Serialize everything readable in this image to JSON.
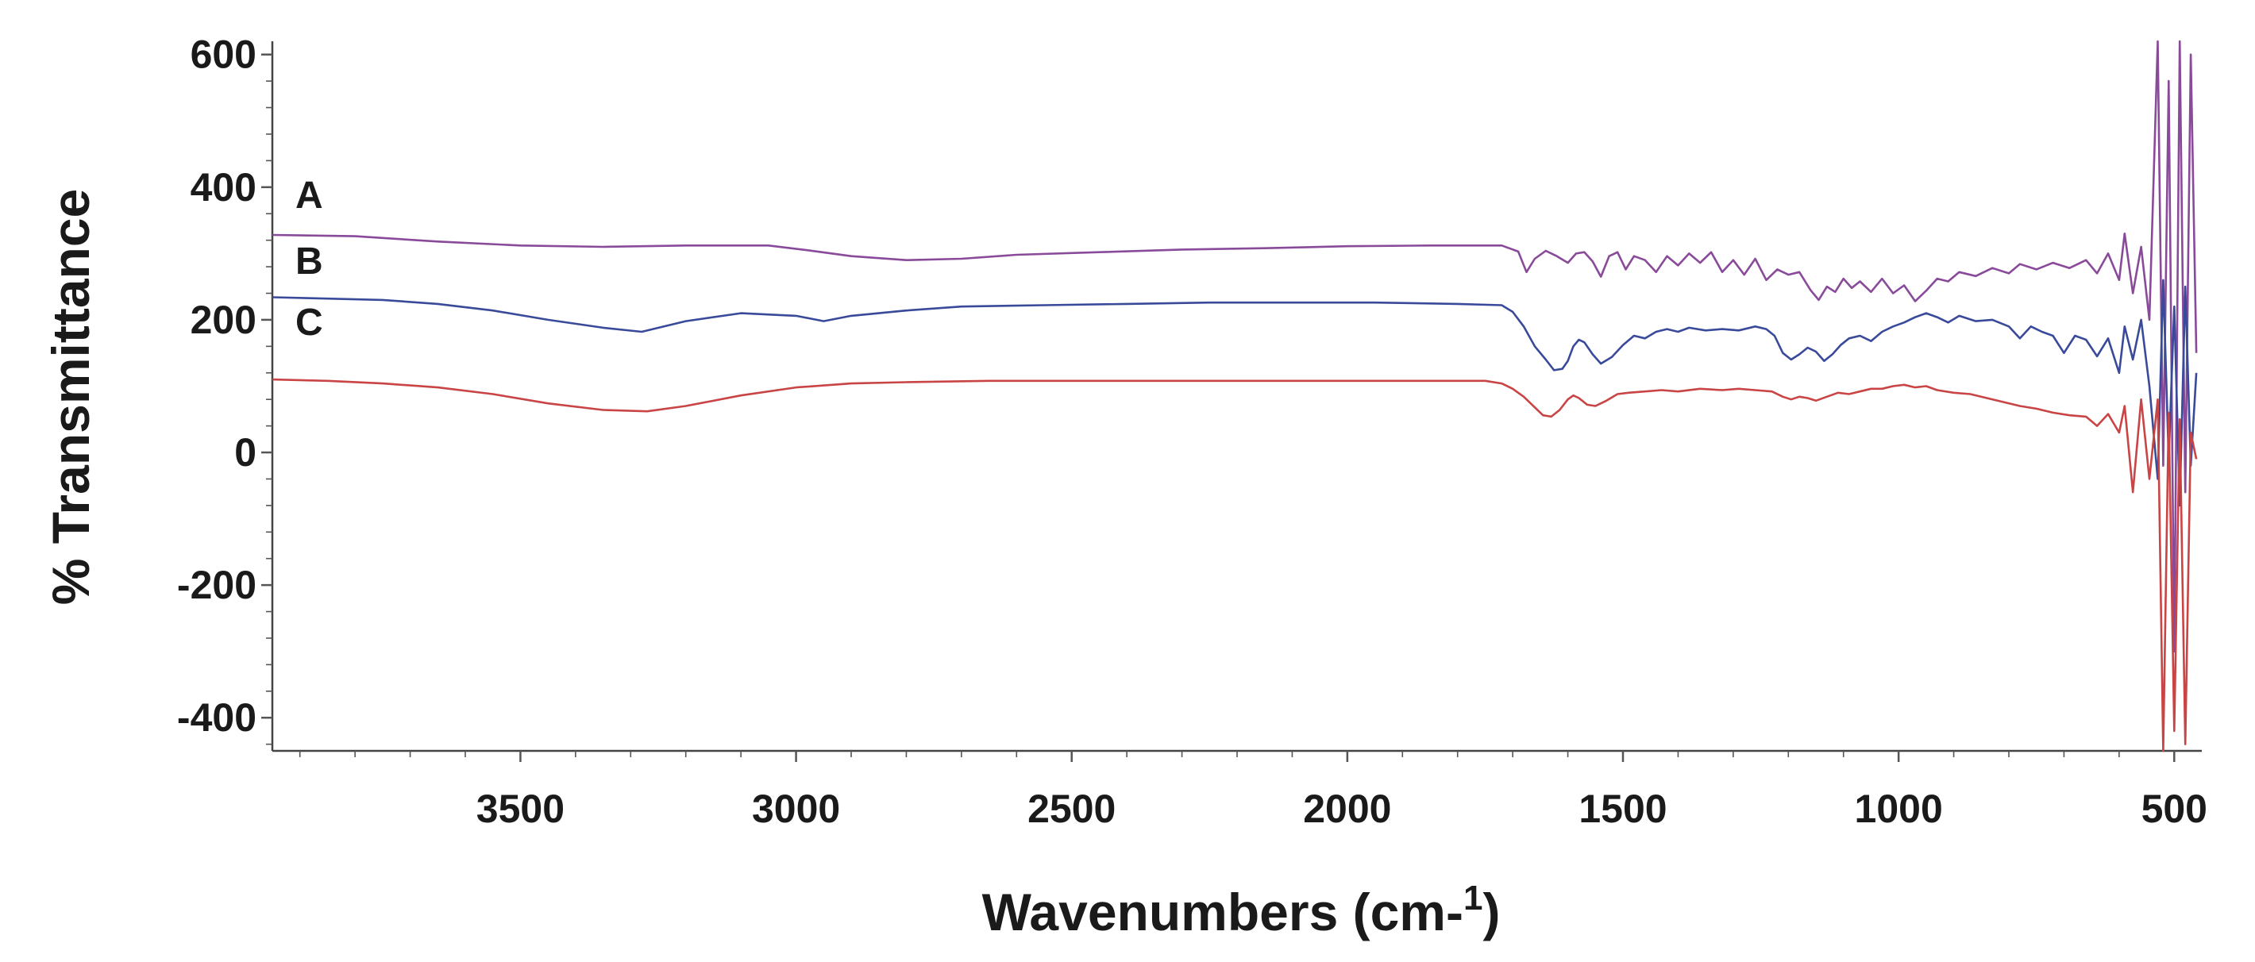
{
  "chart_data": {
    "type": "line",
    "title": "",
    "xlabel": "Wavenumbers (cm-",
    "xlabel_sup": "1",
    "xlabel_close": ")",
    "ylabel": "% Transmittance",
    "xlim": [
      3950,
      450
    ],
    "x_reversed": true,
    "ylim": [
      -450,
      620
    ],
    "xticks": [
      3500,
      3000,
      2500,
      2000,
      1500,
      1000,
      500
    ],
    "yticks": [
      600,
      400,
      200,
      0,
      -200,
      -400
    ],
    "grid": false,
    "legend": "inline labels",
    "series": [
      {
        "name": "A",
        "color": "#8a4a9a",
        "points": [
          [
            3950,
            328
          ],
          [
            3800,
            326
          ],
          [
            3650,
            318
          ],
          [
            3500,
            312
          ],
          [
            3350,
            310
          ],
          [
            3200,
            312
          ],
          [
            3050,
            312
          ],
          [
            2980,
            305
          ],
          [
            2900,
            296
          ],
          [
            2800,
            290
          ],
          [
            2700,
            292
          ],
          [
            2600,
            298
          ],
          [
            2450,
            302
          ],
          [
            2300,
            306
          ],
          [
            2150,
            308
          ],
          [
            2000,
            311
          ],
          [
            1850,
            312
          ],
          [
            1720,
            312
          ],
          [
            1690,
            303
          ],
          [
            1675,
            272
          ],
          [
            1660,
            292
          ],
          [
            1640,
            304
          ],
          [
            1620,
            296
          ],
          [
            1600,
            286
          ],
          [
            1585,
            300
          ],
          [
            1570,
            302
          ],
          [
            1555,
            288
          ],
          [
            1540,
            265
          ],
          [
            1525,
            296
          ],
          [
            1510,
            302
          ],
          [
            1495,
            276
          ],
          [
            1480,
            296
          ],
          [
            1460,
            290
          ],
          [
            1440,
            272
          ],
          [
            1420,
            296
          ],
          [
            1400,
            282
          ],
          [
            1380,
            300
          ],
          [
            1360,
            286
          ],
          [
            1340,
            302
          ],
          [
            1320,
            272
          ],
          [
            1300,
            290
          ],
          [
            1280,
            268
          ],
          [
            1260,
            292
          ],
          [
            1240,
            260
          ],
          [
            1220,
            276
          ],
          [
            1200,
            268
          ],
          [
            1180,
            272
          ],
          [
            1160,
            245
          ],
          [
            1145,
            230
          ],
          [
            1130,
            250
          ],
          [
            1115,
            242
          ],
          [
            1100,
            262
          ],
          [
            1085,
            248
          ],
          [
            1070,
            258
          ],
          [
            1050,
            242
          ],
          [
            1030,
            262
          ],
          [
            1010,
            240
          ],
          [
            990,
            252
          ],
          [
            970,
            228
          ],
          [
            950,
            244
          ],
          [
            930,
            262
          ],
          [
            910,
            258
          ],
          [
            890,
            272
          ],
          [
            860,
            266
          ],
          [
            830,
            278
          ],
          [
            800,
            270
          ],
          [
            780,
            284
          ],
          [
            750,
            276
          ],
          [
            720,
            286
          ],
          [
            690,
            278
          ],
          [
            660,
            290
          ],
          [
            640,
            270
          ],
          [
            620,
            300
          ],
          [
            600,
            260
          ],
          [
            590,
            330
          ],
          [
            575,
            240
          ],
          [
            560,
            310
          ],
          [
            545,
            200
          ],
          [
            530,
            620
          ],
          [
            520,
            -20
          ],
          [
            510,
            560
          ],
          [
            500,
            -300
          ],
          [
            490,
            620
          ],
          [
            480,
            -60
          ],
          [
            470,
            600
          ],
          [
            460,
            150
          ]
        ]
      },
      {
        "name": "B",
        "color": "#3a4a9a",
        "points": [
          [
            3950,
            234
          ],
          [
            3850,
            232
          ],
          [
            3750,
            230
          ],
          [
            3650,
            224
          ],
          [
            3550,
            214
          ],
          [
            3450,
            200
          ],
          [
            3350,
            188
          ],
          [
            3280,
            182
          ],
          [
            3200,
            198
          ],
          [
            3100,
            210
          ],
          [
            3000,
            206
          ],
          [
            2950,
            198
          ],
          [
            2900,
            206
          ],
          [
            2800,
            214
          ],
          [
            2700,
            220
          ],
          [
            2550,
            222
          ],
          [
            2400,
            224
          ],
          [
            2250,
            226
          ],
          [
            2100,
            226
          ],
          [
            1950,
            226
          ],
          [
            1800,
            224
          ],
          [
            1720,
            222
          ],
          [
            1700,
            212
          ],
          [
            1680,
            190
          ],
          [
            1660,
            160
          ],
          [
            1640,
            140
          ],
          [
            1625,
            124
          ],
          [
            1610,
            126
          ],
          [
            1600,
            138
          ],
          [
            1590,
            160
          ],
          [
            1580,
            170
          ],
          [
            1570,
            166
          ],
          [
            1555,
            148
          ],
          [
            1540,
            134
          ],
          [
            1520,
            144
          ],
          [
            1500,
            162
          ],
          [
            1480,
            176
          ],
          [
            1460,
            172
          ],
          [
            1440,
            182
          ],
          [
            1420,
            186
          ],
          [
            1400,
            182
          ],
          [
            1380,
            188
          ],
          [
            1350,
            184
          ],
          [
            1320,
            186
          ],
          [
            1290,
            184
          ],
          [
            1260,
            190
          ],
          [
            1240,
            186
          ],
          [
            1225,
            176
          ],
          [
            1210,
            150
          ],
          [
            1195,
            140
          ],
          [
            1180,
            148
          ],
          [
            1165,
            158
          ],
          [
            1150,
            152
          ],
          [
            1135,
            138
          ],
          [
            1120,
            148
          ],
          [
            1105,
            162
          ],
          [
            1090,
            172
          ],
          [
            1070,
            176
          ],
          [
            1050,
            168
          ],
          [
            1030,
            182
          ],
          [
            1010,
            190
          ],
          [
            990,
            196
          ],
          [
            970,
            204
          ],
          [
            950,
            210
          ],
          [
            930,
            204
          ],
          [
            910,
            196
          ],
          [
            890,
            206
          ],
          [
            860,
            198
          ],
          [
            830,
            200
          ],
          [
            800,
            190
          ],
          [
            780,
            172
          ],
          [
            760,
            190
          ],
          [
            740,
            182
          ],
          [
            720,
            176
          ],
          [
            700,
            150
          ],
          [
            680,
            176
          ],
          [
            660,
            170
          ],
          [
            640,
            145
          ],
          [
            620,
            172
          ],
          [
            600,
            120
          ],
          [
            590,
            190
          ],
          [
            575,
            140
          ],
          [
            560,
            200
          ],
          [
            545,
            100
          ],
          [
            530,
            -40
          ],
          [
            520,
            260
          ],
          [
            510,
            -10
          ],
          [
            500,
            220
          ],
          [
            490,
            -80
          ],
          [
            480,
            250
          ],
          [
            470,
            -20
          ],
          [
            460,
            120
          ]
        ]
      },
      {
        "name": "C",
        "color": "#c94444",
        "points": [
          [
            3950,
            110
          ],
          [
            3850,
            108
          ],
          [
            3750,
            104
          ],
          [
            3650,
            98
          ],
          [
            3550,
            88
          ],
          [
            3450,
            74
          ],
          [
            3350,
            64
          ],
          [
            3270,
            62
          ],
          [
            3200,
            70
          ],
          [
            3100,
            86
          ],
          [
            3000,
            98
          ],
          [
            2900,
            104
          ],
          [
            2800,
            106
          ],
          [
            2650,
            108
          ],
          [
            2500,
            108
          ],
          [
            2350,
            108
          ],
          [
            2200,
            108
          ],
          [
            2050,
            108
          ],
          [
            1900,
            108
          ],
          [
            1750,
            108
          ],
          [
            1720,
            104
          ],
          [
            1700,
            96
          ],
          [
            1680,
            84
          ],
          [
            1660,
            68
          ],
          [
            1645,
            56
          ],
          [
            1630,
            54
          ],
          [
            1615,
            64
          ],
          [
            1600,
            80
          ],
          [
            1590,
            86
          ],
          [
            1580,
            82
          ],
          [
            1565,
            72
          ],
          [
            1550,
            70
          ],
          [
            1530,
            78
          ],
          [
            1510,
            88
          ],
          [
            1490,
            90
          ],
          [
            1460,
            92
          ],
          [
            1430,
            94
          ],
          [
            1400,
            92
          ],
          [
            1360,
            96
          ],
          [
            1320,
            94
          ],
          [
            1290,
            96
          ],
          [
            1260,
            94
          ],
          [
            1230,
            92
          ],
          [
            1210,
            84
          ],
          [
            1195,
            80
          ],
          [
            1180,
            84
          ],
          [
            1165,
            82
          ],
          [
            1150,
            78
          ],
          [
            1130,
            84
          ],
          [
            1110,
            90
          ],
          [
            1090,
            88
          ],
          [
            1070,
            92
          ],
          [
            1050,
            96
          ],
          [
            1030,
            96
          ],
          [
            1010,
            100
          ],
          [
            990,
            102
          ],
          [
            970,
            98
          ],
          [
            950,
            100
          ],
          [
            930,
            94
          ],
          [
            900,
            90
          ],
          [
            870,
            88
          ],
          [
            840,
            82
          ],
          [
            810,
            76
          ],
          [
            780,
            70
          ],
          [
            750,
            66
          ],
          [
            720,
            60
          ],
          [
            690,
            56
          ],
          [
            660,
            54
          ],
          [
            640,
            40
          ],
          [
            620,
            58
          ],
          [
            600,
            30
          ],
          [
            590,
            70
          ],
          [
            575,
            -60
          ],
          [
            560,
            80
          ],
          [
            545,
            -40
          ],
          [
            530,
            80
          ],
          [
            520,
            -450
          ],
          [
            510,
            60
          ],
          [
            500,
            -420
          ],
          [
            490,
            50
          ],
          [
            480,
            -440
          ],
          [
            470,
            30
          ],
          [
            460,
            -10
          ]
        ]
      }
    ]
  }
}
